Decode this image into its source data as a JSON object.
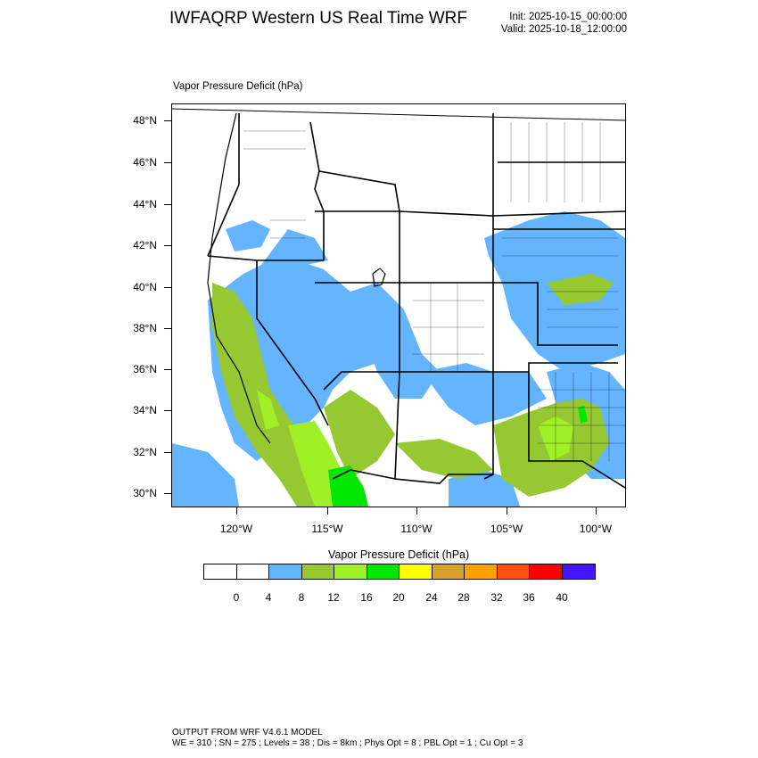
{
  "header": {
    "title": "IWFAQRP Western US Real Time WRF",
    "init": "Init: 2025-10-15_00:00:00",
    "valid": "Valid: 2025-10-18_12:00:00"
  },
  "map": {
    "field_label": "Vapor Pressure Deficit   (hPa)",
    "lat_labels": [
      "48°N",
      "46°N",
      "44°N",
      "42°N",
      "40°N",
      "38°N",
      "36°N",
      "34°N",
      "32°N",
      "30°N"
    ],
    "lon_labels": [
      "120°W",
      "115°W",
      "110°W",
      "105°W",
      "100°W"
    ],
    "colors": {
      "vpd_4_8": "#64b4ff",
      "vpd_8_12": "#96c832",
      "vpd_12_16": "#a0f028",
      "vpd_16_20": "#00e600",
      "border": "#000000"
    }
  },
  "legend": {
    "title": "Vapor Pressure Deficit  (hPa)",
    "colors": [
      "#ffffff",
      "#ffffff",
      "#64b4ff",
      "#96c832",
      "#a0f028",
      "#00e600",
      "#ffff00",
      "#d7a028",
      "#ffa000",
      "#ff5014",
      "#ff0000",
      "#4614ff"
    ],
    "ticks": [
      "0",
      "4",
      "8",
      "12",
      "16",
      "20",
      "24",
      "28",
      "32",
      "36",
      "40"
    ]
  },
  "footer": {
    "line1": "OUTPUT FROM WRF V4.6.1 MODEL",
    "line2": "WE = 310 ; SN = 275 ; Levels = 38 ; Dis = 8km ; Phys Opt = 8 ; PBL Opt = 1 ; Cu Opt = 3"
  }
}
